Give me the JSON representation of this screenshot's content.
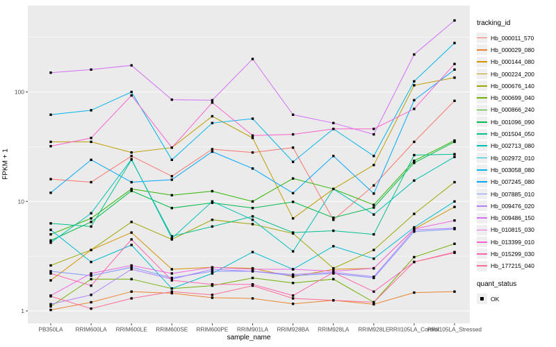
{
  "chart_data": {
    "type": "line",
    "title": "",
    "xlabel": "sample_name",
    "ylabel": "FPKM + 1",
    "y_scale": "log10",
    "y_ticks": [
      1,
      10,
      100
    ],
    "y_minor_ticks": [
      3.1623,
      31.623,
      316.23
    ],
    "ylim": [
      0.77,
      610
    ],
    "legend_position": "right",
    "legend_title": "tracking_id",
    "panel_background": "#EBEBEB",
    "grid_color": "#FFFFFF",
    "tick_label_color": "#4D4D4D",
    "point_marker": "black-square",
    "quant_status": {
      "title": "quant_status",
      "entries": [
        "OK"
      ]
    },
    "categories": [
      "PB350LA",
      "RRIM600LA",
      "RRIM600LE",
      "RRIM600SE",
      "RRIM600PE",
      "RRIM901LA",
      "RRIM928BA",
      "RRIM928LA",
      "RRIM928LE",
      "RRII105LA_Control",
      "RRII105LA_Stressed"
    ],
    "series": [
      {
        "name": "Hb_000011_570",
        "color": "#F8766D",
        "values": [
          16,
          15,
          26,
          17,
          30,
          28,
          31,
          6.8,
          14,
          35,
          83
        ]
      },
      {
        "name": "Hb_000029_080",
        "color": "#E9842C",
        "values": [
          1.02,
          1.2,
          1.5,
          1.45,
          1.32,
          1.3,
          1.16,
          1.25,
          1.15,
          1.47,
          1.5
        ]
      },
      {
        "name": "Hb_000144_080",
        "color": "#D69100",
        "values": [
          1.9,
          3.6,
          5.2,
          2.4,
          2.5,
          2.45,
          2.05,
          2.4,
          2.45,
          5.6,
          8.9
        ]
      },
      {
        "name": "Hb_000224_200",
        "color": "#BC9D00",
        "values": [
          35,
          35,
          28,
          31,
          60,
          38,
          7.0,
          13,
          21.5,
          115,
          135
        ]
      },
      {
        "name": "Hb_000676_140",
        "color": "#9CA700",
        "values": [
          2.6,
          3.6,
          6.5,
          4.5,
          6.8,
          6.2,
          5.1,
          2.45,
          3.6,
          7.7,
          15
        ]
      },
      {
        "name": "Hb_000699_040",
        "color": "#6FB000",
        "values": [
          1.1,
          1.95,
          1.95,
          1.6,
          1.7,
          2.0,
          1.8,
          1.95,
          1.2,
          3.1,
          4.1
        ]
      },
      {
        "name": "Hb_000866_240",
        "color": "#2CB600",
        "values": [
          5.0,
          7.0,
          13,
          11.4,
          12.4,
          10,
          16.2,
          13,
          9.3,
          23.5,
          36
        ]
      },
      {
        "name": "Hb_001096_090",
        "color": "#00BB4B",
        "values": [
          4.4,
          6.5,
          12.5,
          8.7,
          9.7,
          8.7,
          9.9,
          7.1,
          8.8,
          22.5,
          35
        ]
      },
      {
        "name": "Hb_001504_050",
        "color": "#00C08D",
        "values": [
          6.3,
          5.9,
          24,
          4.8,
          5.9,
          7.3,
          5.2,
          5.4,
          5.0,
          26.5,
          27
        ]
      },
      {
        "name": "Hb_002713_080",
        "color": "#00C0B4",
        "values": [
          4.2,
          7.8,
          24.3,
          4.6,
          10,
          6.8,
          3.5,
          13,
          7.6,
          15.5,
          25.5
        ]
      },
      {
        "name": "Hb_002972_010",
        "color": "#00BDD4",
        "values": [
          5.5,
          2.8,
          4.0,
          1.6,
          2.2,
          3.45,
          2.4,
          3.9,
          3.0,
          5.8,
          10
        ]
      },
      {
        "name": "Hb_003058_080",
        "color": "#00B5EE",
        "values": [
          62,
          68,
          100,
          24,
          52,
          57,
          23,
          46,
          26,
          125,
          280
        ]
      },
      {
        "name": "Hb_007245_080",
        "color": "#00A7FF",
        "values": [
          12,
          24,
          15,
          15.8,
          28.5,
          20,
          11.9,
          26,
          11.8,
          84,
          160
        ]
      },
      {
        "name": "Hb_007885_010",
        "color": "#7E96FF",
        "values": [
          2.3,
          2.1,
          2.5,
          2.0,
          2.3,
          2.3,
          2.1,
          2.2,
          2.0,
          5.3,
          5.6
        ]
      },
      {
        "name": "Hb_009476_020",
        "color": "#B17FFF",
        "values": [
          1.15,
          1.4,
          2.4,
          1.95,
          2.4,
          2.3,
          2.15,
          2.25,
          2.05,
          5.5,
          5.7
        ]
      },
      {
        "name": "Hb_009486_150",
        "color": "#D56EF8",
        "values": [
          150,
          160,
          175,
          85,
          84,
          200,
          62,
          52,
          41,
          220,
          450
        ]
      },
      {
        "name": "Hb_010815_030",
        "color": "#EF65E6",
        "values": [
          1.38,
          2.2,
          2.6,
          2.2,
          2.5,
          2.4,
          2.4,
          2.3,
          2.45,
          5.6,
          6.7
        ]
      },
      {
        "name": "Hb_013399_010",
        "color": "#FC61CF",
        "values": [
          32,
          38,
          93,
          31,
          80,
          40,
          41,
          46,
          46,
          70,
          180
        ]
      },
      {
        "name": "Hb_015299_030",
        "color": "#FF64B0",
        "values": [
          2.2,
          1.7,
          4.5,
          1.9,
          1.75,
          1.75,
          1.38,
          2.25,
          1.5,
          2.8,
          3.4
        ]
      },
      {
        "name": "Hb_177215_040",
        "color": "#FF6B94",
        "values": [
          1.36,
          1.05,
          1.3,
          1.5,
          1.4,
          1.7,
          1.3,
          1.25,
          1.2,
          2.8,
          3.45
        ]
      }
    ]
  }
}
